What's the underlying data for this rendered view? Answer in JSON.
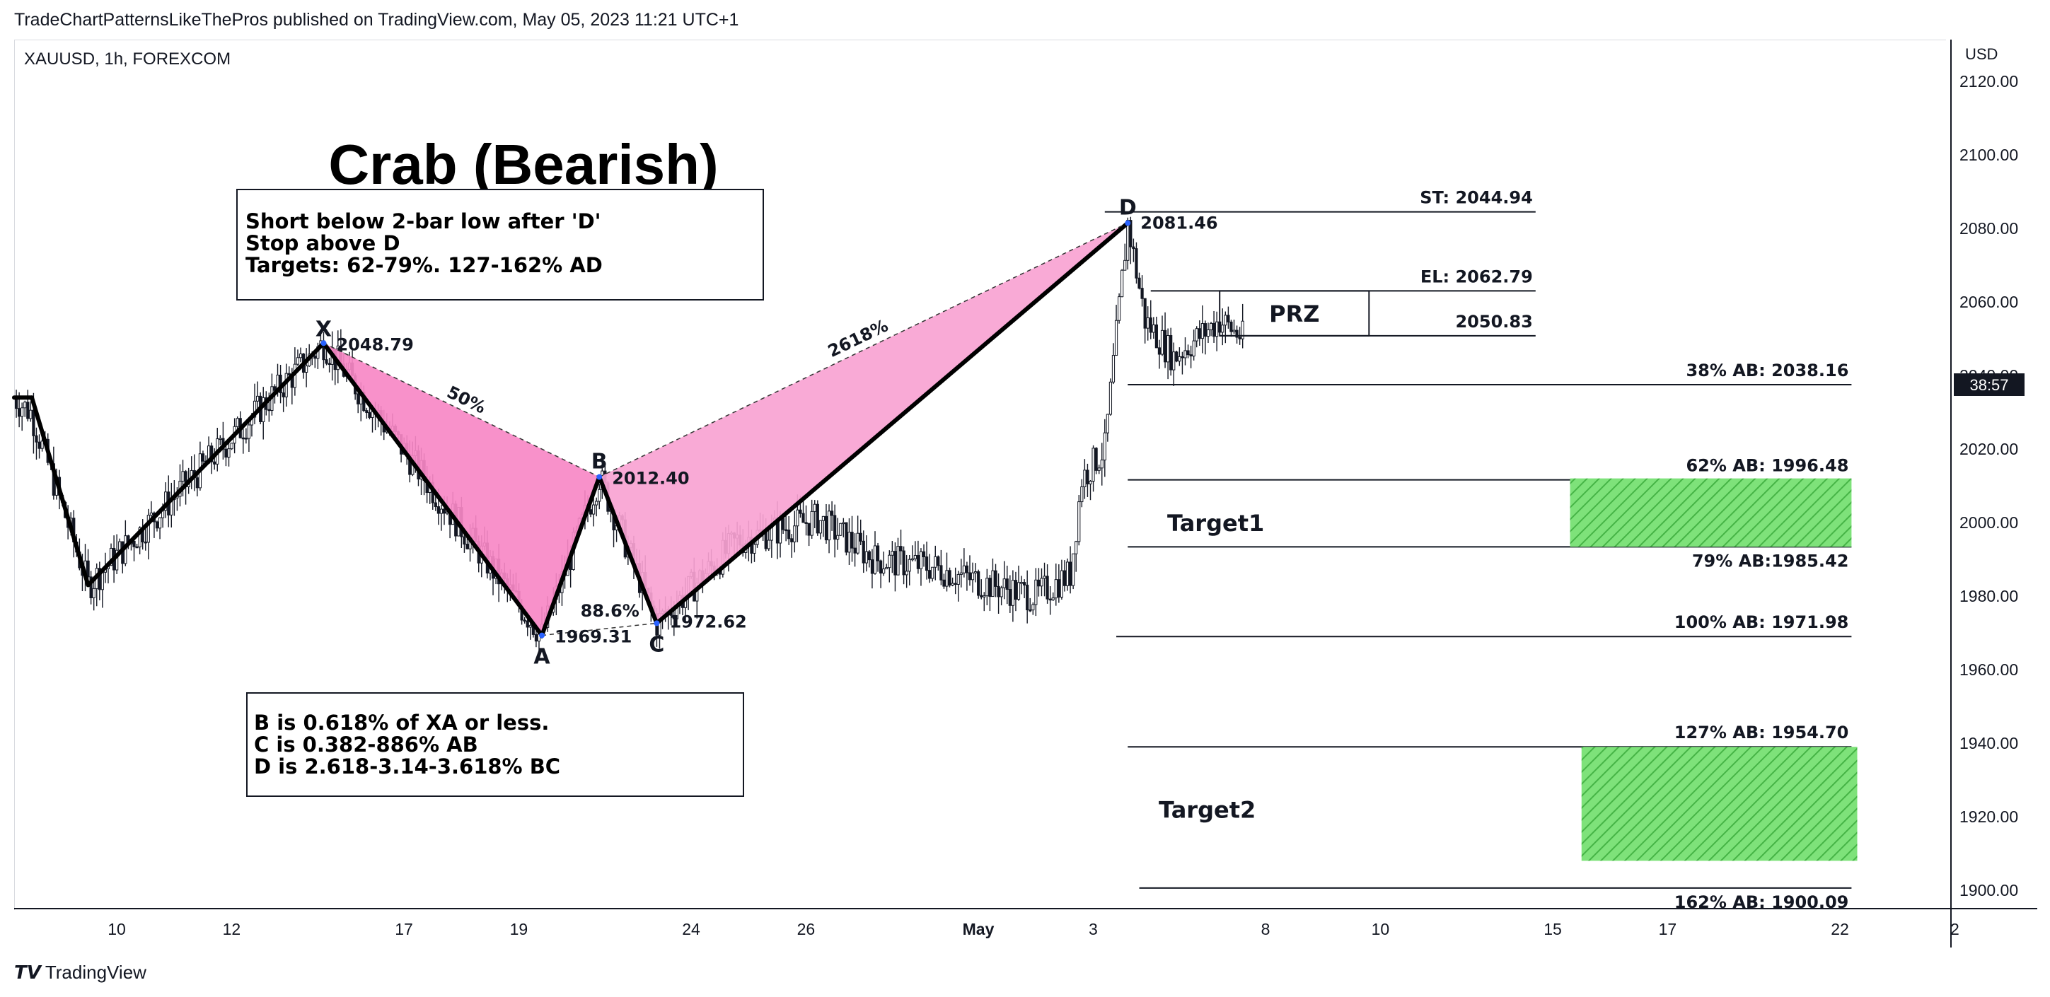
{
  "header": {
    "published": "TradeChartPatternsLikeThePros published on TradingView.com, May 05, 2023 11:21 UTC+1",
    "symbol": "XAUUSD, 1h, FOREXCOM",
    "currency": "USD"
  },
  "footer": {
    "brand": "TradingView"
  },
  "price_tag": "38:57",
  "chart_data": {
    "type": "candlestick",
    "instrument": "XAUUSD",
    "timeframe": "1h",
    "ylim": [
      1895,
      2125
    ],
    "y_ticks": [
      2120,
      2100,
      2080,
      2060,
      2040,
      2020,
      2000,
      1980,
      1960,
      1940,
      1920,
      1900
    ],
    "y_tick_labels": [
      "2120.00",
      "2100.00",
      "2080.00",
      "2060.00",
      "2040.00",
      "2020.00",
      "2000.00",
      "1980.00",
      "1960.00",
      "1940.00",
      "1920.00",
      "1900.00"
    ],
    "x_ticks": [
      {
        "day": 1,
        "label": "10"
      },
      {
        "day": 3,
        "label": "12"
      },
      {
        "day": 6,
        "label": "17"
      },
      {
        "day": 8,
        "label": "19"
      },
      {
        "day": 11,
        "label": "24"
      },
      {
        "day": 13,
        "label": "26"
      },
      {
        "day": 16,
        "label": "May"
      },
      {
        "day": 18,
        "label": "3"
      },
      {
        "day": 21,
        "label": "8"
      },
      {
        "day": 23,
        "label": "10"
      },
      {
        "day": 26,
        "label": "15"
      },
      {
        "day": 28,
        "label": "17"
      },
      {
        "day": 31,
        "label": "22"
      },
      {
        "day": 33,
        "label": "2"
      }
    ],
    "title": "Crab (Bearish)",
    "pattern_points": [
      {
        "name": "X",
        "day": 5.4,
        "price": 2048.79,
        "label": "2048.79"
      },
      {
        "name": "A",
        "day": 9.2,
        "price": 1969.31,
        "label": "1969.31"
      },
      {
        "name": "B",
        "day": 10.2,
        "price": 2012.4,
        "label": "2012.40"
      },
      {
        "name": "C",
        "day": 11.2,
        "price": 1972.62,
        "label": "1972.62"
      },
      {
        "name": "D",
        "day": 19.4,
        "price": 2081.46,
        "label": "2081.46"
      }
    ],
    "ratios": [
      {
        "text": "50%"
      },
      {
        "text": "88.6%"
      },
      {
        "text": "2618%"
      }
    ],
    "levels": [
      {
        "label": "ST: 2044.94",
        "price": 2084.5,
        "d0": 19.0,
        "d1": 26.5
      },
      {
        "label": "EL: 2062.79",
        "price": 2063.0,
        "d0": 19.8,
        "d1": 26.5
      },
      {
        "label": "2050.83",
        "price": 2050.8,
        "d0": 21.0,
        "d1": 26.5
      },
      {
        "label": "38% AB: 2038.16",
        "price": 2037.5,
        "d0": 19.4,
        "d1": 32.0
      },
      {
        "label": "62% AB: 1996.48",
        "price": 2011.6,
        "d0": 19.4,
        "d1": 32.0
      },
      {
        "label": "79% AB:1985.42",
        "price": 1993.4,
        "d0": 19.4,
        "d1": 32.0
      },
      {
        "label": "100% AB: 1971.98",
        "price": 1969.0,
        "d0": 19.2,
        "d1": 32.0
      },
      {
        "label": "127% AB: 1954.70",
        "price": 1939.0,
        "d0": 19.4,
        "d1": 32.0
      },
      {
        "label": "162% AB: 1900.09",
        "price": 1900.6,
        "d0": 19.6,
        "d1": 32.0
      }
    ],
    "prz_label": "PRZ",
    "targets": [
      {
        "label": "Target1",
        "top": 2012.0,
        "bottom": 1993.4
      },
      {
        "label": "Target2",
        "top": 1939.0,
        "bottom": 1908.0
      }
    ],
    "notes_top": [
      "Short below 2-bar low after 'D'",
      "Stop above D",
      "Targets: 62-79%. 127-162% AD"
    ],
    "notes_bottom": [
      "B is 0.618% of XA or less.",
      "C is 0.382-886% AB",
      "D is 2.618-3.14-3.618% BC"
    ],
    "colors": {
      "xab_fill": "#f788c6",
      "bcd_fill": "#f9a3d2",
      "target_fill": "#7ee27a",
      "target_hatch": "#3fae3f",
      "pattern_line": "#000000",
      "candles": "#131722"
    }
  }
}
